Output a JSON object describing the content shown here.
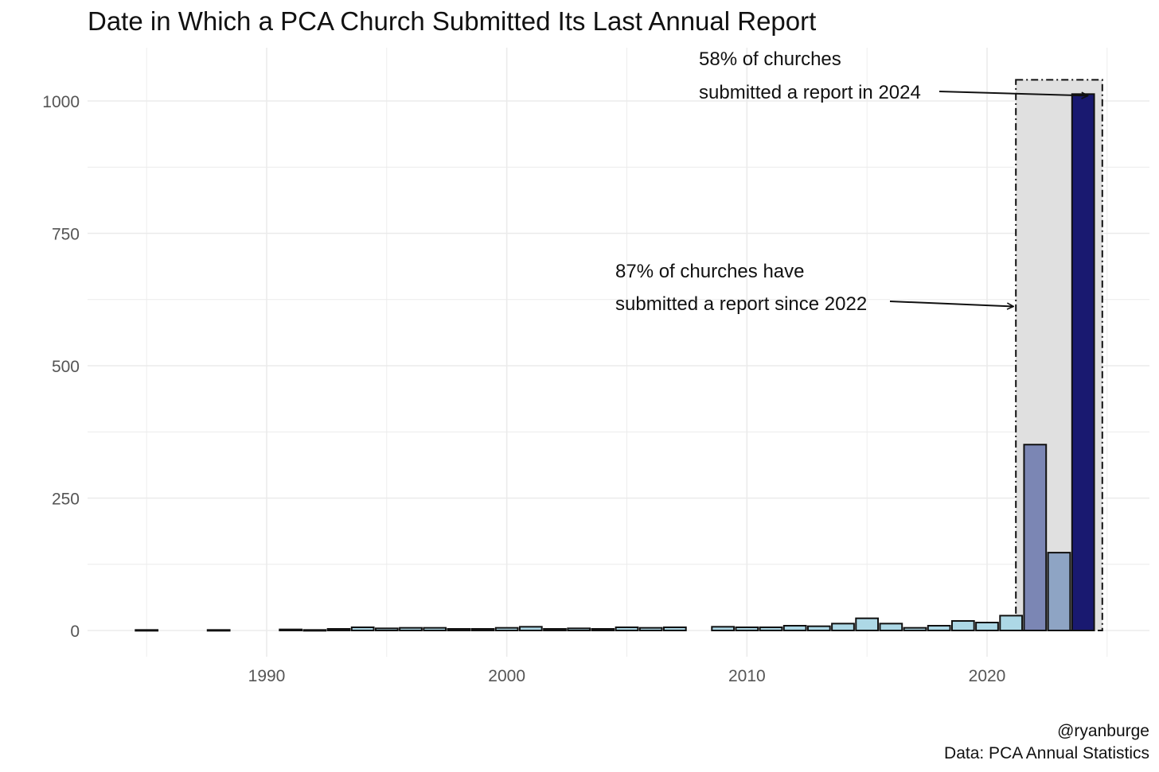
{
  "chart_data": {
    "type": "bar",
    "title": "Date in Which a PCA Church Submitted Its Last Annual Report",
    "xlabel": "",
    "ylabel": "",
    "xlim": [
      1983.5,
      2025.5
    ],
    "ylim": [
      0,
      1000
    ],
    "x_ticks": [
      1990,
      2000,
      2010,
      2020
    ],
    "y_ticks": [
      0,
      250,
      500,
      750,
      1000
    ],
    "grid": true,
    "bars": [
      {
        "x": 1985,
        "value": 1
      },
      {
        "x": 1988,
        "value": 1
      },
      {
        "x": 1991,
        "value": 2
      },
      {
        "x": 1992,
        "value": 1
      },
      {
        "x": 1993,
        "value": 3
      },
      {
        "x": 1994,
        "value": 6
      },
      {
        "x": 1995,
        "value": 4
      },
      {
        "x": 1996,
        "value": 5
      },
      {
        "x": 1997,
        "value": 5
      },
      {
        "x": 1998,
        "value": 3
      },
      {
        "x": 1999,
        "value": 3
      },
      {
        "x": 2000,
        "value": 5
      },
      {
        "x": 2001,
        "value": 7
      },
      {
        "x": 2002,
        "value": 3
      },
      {
        "x": 2003,
        "value": 4
      },
      {
        "x": 2004,
        "value": 3
      },
      {
        "x": 2005,
        "value": 6
      },
      {
        "x": 2006,
        "value": 5
      },
      {
        "x": 2007,
        "value": 6
      },
      {
        "x": 2009,
        "value": 7
      },
      {
        "x": 2010,
        "value": 6
      },
      {
        "x": 2011,
        "value": 6
      },
      {
        "x": 2012,
        "value": 9
      },
      {
        "x": 2013,
        "value": 8
      },
      {
        "x": 2014,
        "value": 13
      },
      {
        "x": 2015,
        "value": 23
      },
      {
        "x": 2016,
        "value": 13
      },
      {
        "x": 2017,
        "value": 5
      },
      {
        "x": 2018,
        "value": 9
      },
      {
        "x": 2019,
        "value": 18
      },
      {
        "x": 2020,
        "value": 15
      },
      {
        "x": 2021,
        "value": 28
      },
      {
        "x": 2022,
        "value": 351
      },
      {
        "x": 2023,
        "value": 147
      },
      {
        "x": 2024,
        "value": 1013
      }
    ],
    "colors": {
      "default": "#add8e6",
      "2022": "#7b86b4",
      "2023": "#8ea4c4",
      "2024": "#191970",
      "highlight_box": "#e0e0e0",
      "bar_outline": "#111111",
      "grid": "#ebebeb"
    },
    "highlight": {
      "x_from": 2021.2,
      "x_to": 2024.8,
      "y_to": 1040
    },
    "annotations": [
      {
        "lines": [
          "58% of churches",
          "submitted a report in 2024"
        ],
        "arrow_to": {
          "x": 2024.2,
          "y": 1010
        }
      },
      {
        "lines": [
          "87% of churches have",
          "submitted a report since 2022"
        ],
        "arrow_to": {
          "x": 2021.1,
          "y": 612
        }
      }
    ]
  },
  "caption": {
    "author": "@ryanburge",
    "source": "Data: PCA Annual Statistics"
  }
}
